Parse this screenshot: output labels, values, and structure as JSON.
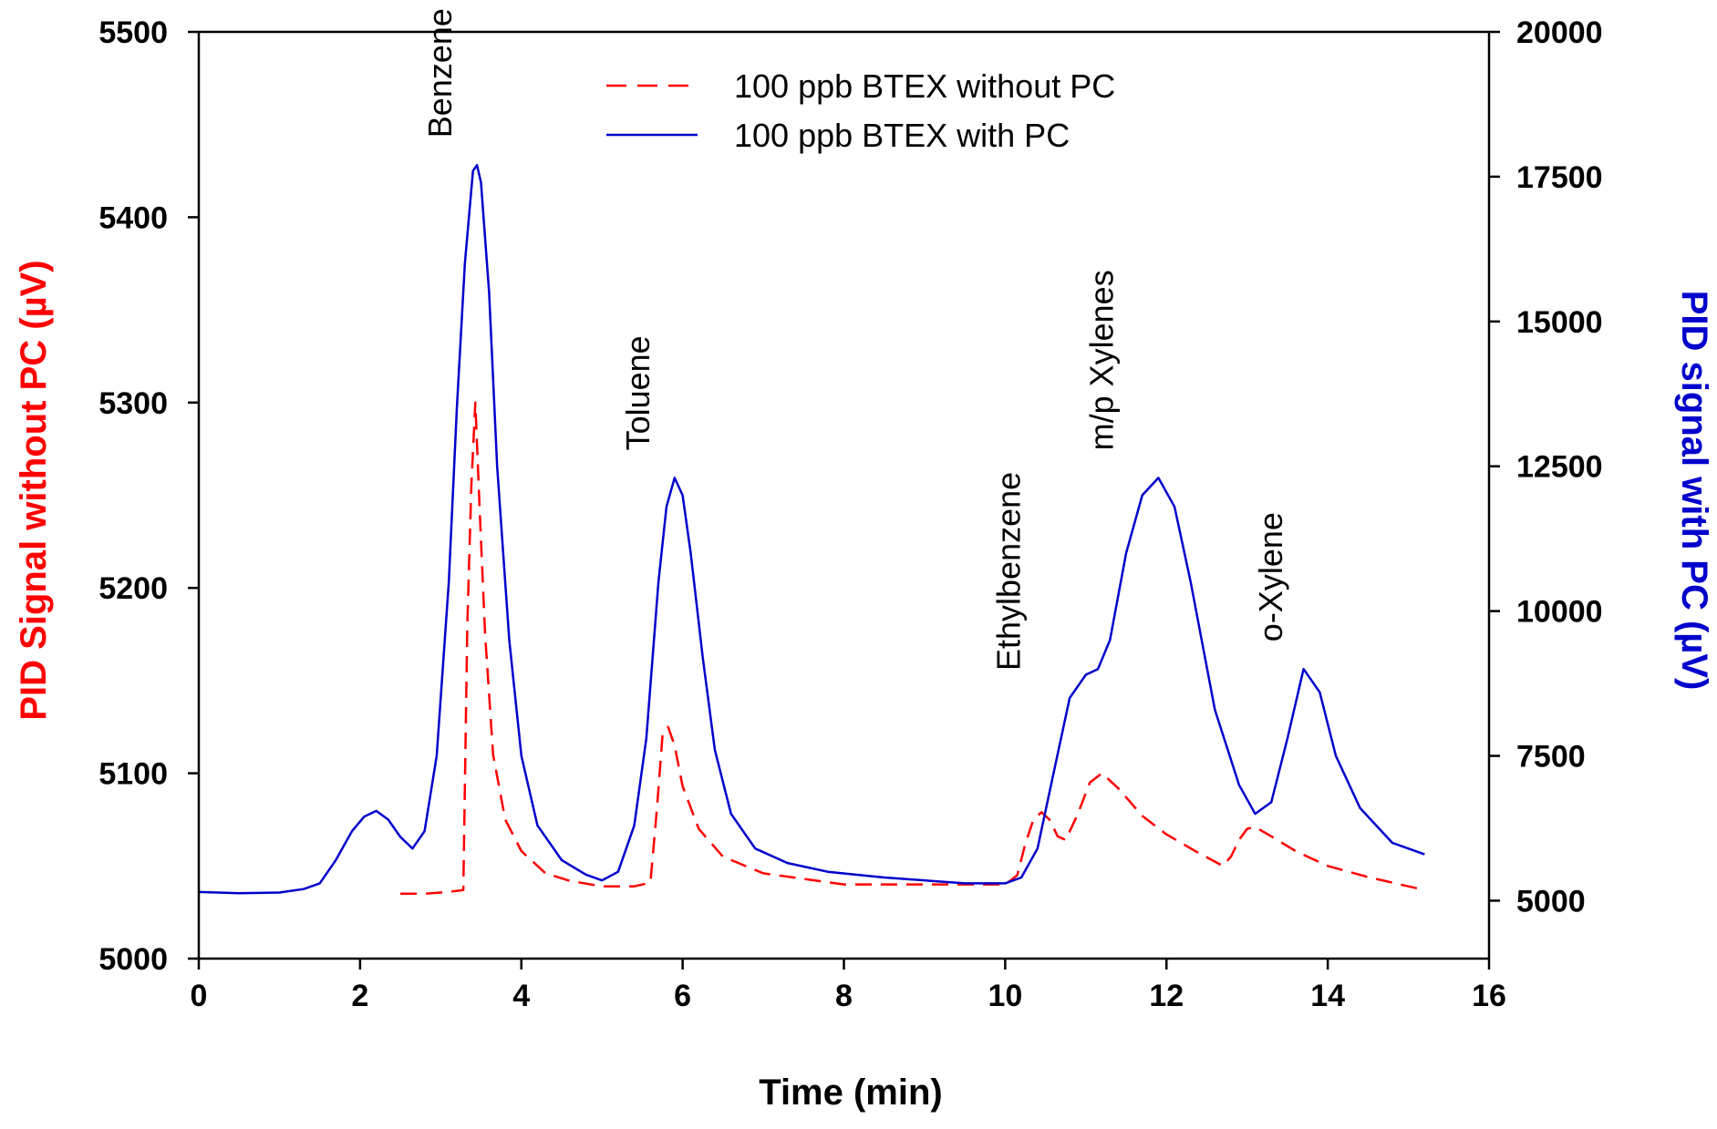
{
  "chart_data": {
    "type": "line",
    "xlabel": "Time (min)",
    "ylabel_left": "PID Signal without PC (µV)",
    "ylabel_right": "PID signal with PC (µV)",
    "xlim": [
      0,
      16
    ],
    "ylim_left": [
      5000,
      5500
    ],
    "ylim_right": [
      4000,
      20000
    ],
    "x_ticks": [
      0,
      2,
      4,
      6,
      8,
      10,
      12,
      14,
      16
    ],
    "x_tick_labels": [
      "0",
      "2",
      "4",
      "6",
      "8",
      "10",
      "12",
      "14",
      "16"
    ],
    "y_left_ticks": [
      5000,
      5100,
      5200,
      5300,
      5400,
      5500
    ],
    "y_left_tick_labels": [
      "5000",
      "5100",
      "5200",
      "5300",
      "5400",
      "5500"
    ],
    "y_right_ticks": [
      5000,
      7500,
      10000,
      12500,
      15000,
      17500,
      20000
    ],
    "y_right_tick_labels": [
      "5000",
      "7500",
      "10000",
      "12500",
      "15000",
      "17500",
      "20000"
    ],
    "grid": false,
    "legend_position": "top-center",
    "colors": {
      "without_pc": "#ff0000",
      "with_pc": "#0000cc",
      "axis": "#000000"
    },
    "series": [
      {
        "name": "100 ppb BTEX without PC",
        "axis": "left",
        "style": "dashed",
        "x": [
          2.5,
          2.8,
          3.1,
          3.28,
          3.33,
          3.38,
          3.43,
          3.48,
          3.55,
          3.65,
          3.8,
          4.0,
          4.3,
          4.6,
          5.0,
          5.4,
          5.6,
          5.68,
          5.75,
          5.82,
          5.9,
          6.0,
          6.2,
          6.5,
          7.0,
          7.5,
          8.0,
          9.0,
          10.0,
          10.15,
          10.25,
          10.35,
          10.45,
          10.55,
          10.65,
          10.75,
          10.9,
          11.05,
          11.2,
          11.4,
          11.7,
          12.0,
          12.4,
          12.7,
          12.8,
          12.9,
          13.0,
          13.1,
          13.3,
          13.6,
          14.0,
          14.5,
          15.0,
          15.2
        ],
        "values": [
          5035,
          5035,
          5036,
          5037,
          5180,
          5255,
          5300,
          5245,
          5175,
          5110,
          5075,
          5058,
          5046,
          5042,
          5039,
          5039,
          5041,
          5080,
          5120,
          5125,
          5115,
          5093,
          5070,
          5055,
          5046,
          5043,
          5040,
          5040,
          5040,
          5045,
          5062,
          5075,
          5079,
          5075,
          5066,
          5064,
          5078,
          5095,
          5100,
          5092,
          5077,
          5067,
          5057,
          5050,
          5055,
          5064,
          5070,
          5071,
          5066,
          5058,
          5050,
          5044,
          5039,
          5037
        ]
      },
      {
        "name": "100 ppb BTEX with PC",
        "axis": "right",
        "style": "solid",
        "x": [
          0,
          0.5,
          1.0,
          1.3,
          1.5,
          1.7,
          1.9,
          2.05,
          2.2,
          2.35,
          2.5,
          2.65,
          2.8,
          2.95,
          3.1,
          3.2,
          3.3,
          3.4,
          3.45,
          3.5,
          3.6,
          3.7,
          3.85,
          4.0,
          4.2,
          4.5,
          4.8,
          5.0,
          5.2,
          5.4,
          5.55,
          5.7,
          5.8,
          5.9,
          6.0,
          6.1,
          6.25,
          6.4,
          6.6,
          6.9,
          7.3,
          7.8,
          8.5,
          9.5,
          10.0,
          10.2,
          10.4,
          10.6,
          10.8,
          11.0,
          11.15,
          11.3,
          11.5,
          11.7,
          11.9,
          12.1,
          12.3,
          12.6,
          12.9,
          13.1,
          13.3,
          13.5,
          13.7,
          13.9,
          14.1,
          14.4,
          14.8,
          15.2
        ],
        "values": [
          5150,
          5130,
          5140,
          5200,
          5300,
          5700,
          6200,
          6450,
          6550,
          6400,
          6100,
          5900,
          6200,
          7500,
          10500,
          13500,
          16000,
          17600,
          17700,
          17400,
          15500,
          12500,
          9500,
          7500,
          6300,
          5700,
          5450,
          5350,
          5500,
          6300,
          7800,
          10500,
          11800,
          12300,
          12000,
          11000,
          9200,
          7600,
          6500,
          5900,
          5650,
          5500,
          5400,
          5300,
          5300,
          5400,
          5900,
          7200,
          8500,
          8900,
          9000,
          9500,
          11000,
          12000,
          12300,
          11800,
          10500,
          8300,
          7000,
          6500,
          6700,
          7800,
          9000,
          8600,
          7500,
          6600,
          6000,
          5800
        ]
      }
    ],
    "annotations": [
      {
        "text": "Benzene",
        "x": 3.45
      },
      {
        "text": "Toluene",
        "x": 5.9
      },
      {
        "text": "Ethylbenzene",
        "x": 10.5
      },
      {
        "text": "m/p Xylenes",
        "x": 11.65
      },
      {
        "text": "o-Xylene",
        "x": 13.75
      }
    ]
  }
}
